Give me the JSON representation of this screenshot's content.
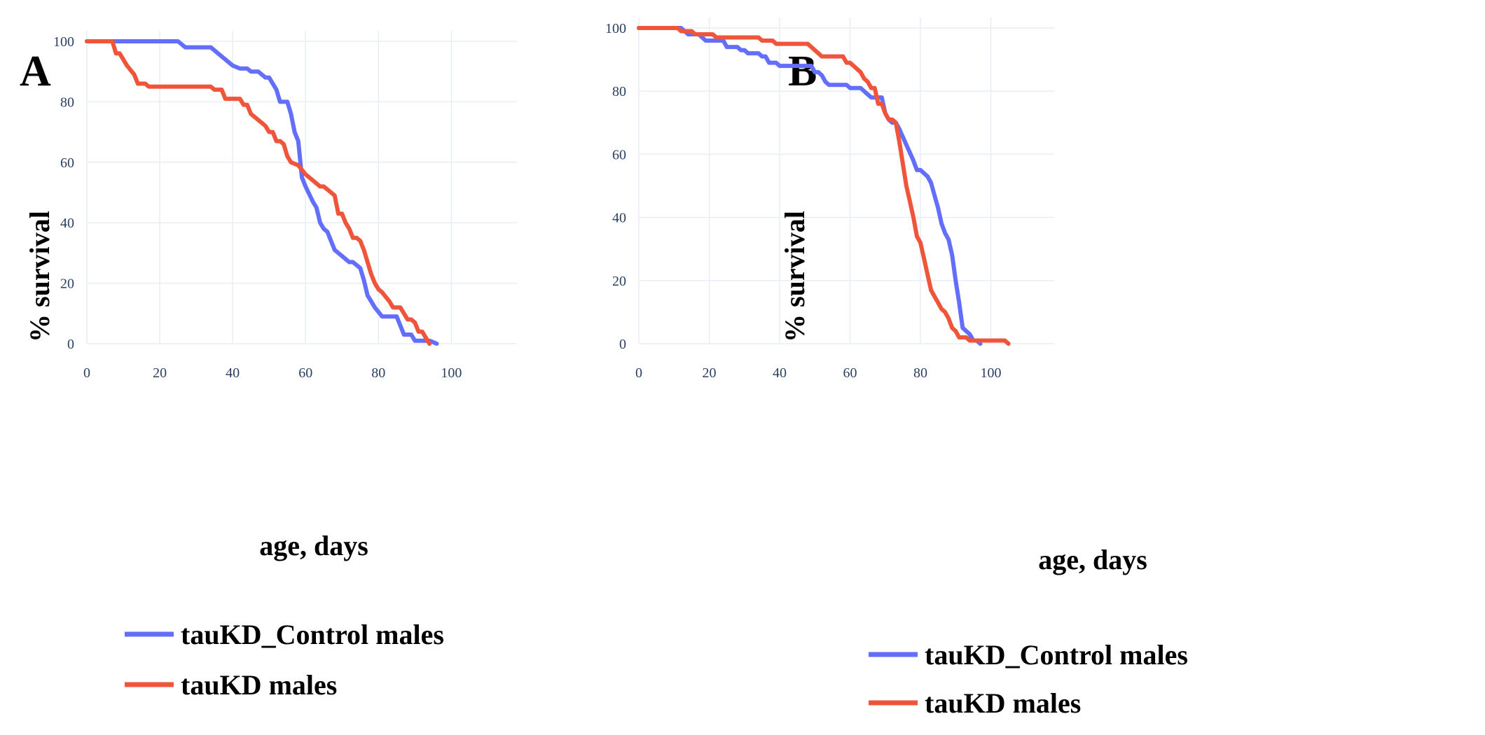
{
  "chart_data": [
    {
      "panel": "A",
      "type": "line",
      "xlabel": "age, days",
      "ylabel": "% survival",
      "xlim": [
        0,
        118
      ],
      "ylim": [
        0,
        100
      ],
      "x_ticks": [
        0,
        20,
        40,
        60,
        80,
        100
      ],
      "y_ticks": [
        0,
        20,
        40,
        60,
        80,
        100
      ],
      "grid": true,
      "legend_position": "bottom",
      "series": [
        {
          "name": "tauKD_Control males",
          "color": "#636efa",
          "points": [
            [
              0,
              100
            ],
            [
              25,
              100
            ],
            [
              27,
              98
            ],
            [
              34,
              98
            ],
            [
              36,
              96
            ],
            [
              38,
              94
            ],
            [
              40,
              92
            ],
            [
              42,
              91
            ],
            [
              44,
              91
            ],
            [
              45,
              90
            ],
            [
              47,
              90
            ],
            [
              48,
              89
            ],
            [
              49,
              88
            ],
            [
              50,
              88
            ],
            [
              52,
              84
            ],
            [
              53,
              80
            ],
            [
              55,
              80
            ],
            [
              56,
              76
            ],
            [
              57,
              70
            ],
            [
              58,
              67
            ],
            [
              59,
              55
            ],
            [
              60,
              52
            ],
            [
              62,
              47
            ],
            [
              63,
              45
            ],
            [
              64,
              40
            ],
            [
              65,
              38
            ],
            [
              66,
              37
            ],
            [
              68,
              31
            ],
            [
              70,
              29
            ],
            [
              72,
              27
            ],
            [
              73,
              27
            ],
            [
              75,
              25
            ],
            [
              76,
              21
            ],
            [
              77,
              16
            ],
            [
              79,
              12
            ],
            [
              81,
              9
            ],
            [
              85,
              9
            ],
            [
              87,
              3
            ],
            [
              89,
              3
            ],
            [
              90,
              1
            ],
            [
              94,
              1
            ],
            [
              96,
              0
            ]
          ]
        },
        {
          "name": "tauKD males",
          "color": "#ef553b",
          "points": [
            [
              0,
              100
            ],
            [
              7,
              100
            ],
            [
              8,
              96
            ],
            [
              9,
              96
            ],
            [
              11,
              92
            ],
            [
              13,
              89
            ],
            [
              14,
              86
            ],
            [
              16,
              86
            ],
            [
              17,
              85
            ],
            [
              34,
              85
            ],
            [
              35,
              84
            ],
            [
              37,
              84
            ],
            [
              38,
              81
            ],
            [
              42,
              81
            ],
            [
              43,
              79
            ],
            [
              44,
              79
            ],
            [
              45,
              76
            ],
            [
              48,
              73
            ],
            [
              49,
              72
            ],
            [
              50,
              70
            ],
            [
              51,
              70
            ],
            [
              52,
              67
            ],
            [
              53,
              67
            ],
            [
              54,
              66
            ],
            [
              55,
              62
            ],
            [
              56,
              60
            ],
            [
              58,
              59
            ],
            [
              60,
              56
            ],
            [
              62,
              54
            ],
            [
              64,
              52
            ],
            [
              65,
              52
            ],
            [
              66,
              51
            ],
            [
              67,
              50
            ],
            [
              68,
              49
            ],
            [
              69,
              43
            ],
            [
              70,
              43
            ],
            [
              71,
              40
            ],
            [
              72,
              38
            ],
            [
              73,
              35
            ],
            [
              74,
              35
            ],
            [
              75,
              34
            ],
            [
              76,
              31
            ],
            [
              77,
              27
            ],
            [
              78,
              23
            ],
            [
              79,
              20
            ],
            [
              80,
              18
            ],
            [
              81,
              17
            ],
            [
              83,
              14
            ],
            [
              84,
              12
            ],
            [
              86,
              12
            ],
            [
              87,
              10
            ],
            [
              88,
              8
            ],
            [
              89,
              8
            ],
            [
              90,
              7
            ],
            [
              91,
              4
            ],
            [
              92,
              4
            ],
            [
              93,
              2
            ],
            [
              94,
              0
            ]
          ]
        }
      ]
    },
    {
      "panel": "B",
      "type": "line",
      "xlabel": "age, days",
      "ylabel": "% survival",
      "xlim": [
        0,
        118
      ],
      "ylim": [
        0,
        100
      ],
      "x_ticks": [
        0,
        20,
        40,
        60,
        80,
        100
      ],
      "y_ticks": [
        0,
        20,
        40,
        60,
        80,
        100
      ],
      "grid": true,
      "legend_position": "bottom",
      "series": [
        {
          "name": "tauKD_Control males",
          "color": "#636efa",
          "points": [
            [
              0,
              100
            ],
            [
              12,
              100
            ],
            [
              13,
              99
            ],
            [
              14,
              98
            ],
            [
              17,
              98
            ],
            [
              18,
              97
            ],
            [
              19,
              96
            ],
            [
              24,
              96
            ],
            [
              25,
              94
            ],
            [
              28,
              94
            ],
            [
              29,
              93
            ],
            [
              30,
              93
            ],
            [
              31,
              92
            ],
            [
              34,
              92
            ],
            [
              35,
              91
            ],
            [
              36,
              91
            ],
            [
              37,
              89
            ],
            [
              39,
              89
            ],
            [
              40,
              88
            ],
            [
              49,
              88
            ],
            [
              50,
              86
            ],
            [
              51,
              86
            ],
            [
              52,
              85
            ],
            [
              53,
              83
            ],
            [
              54,
              82
            ],
            [
              59,
              82
            ],
            [
              60,
              81
            ],
            [
              63,
              81
            ],
            [
              64,
              80
            ],
            [
              65,
              79
            ],
            [
              66,
              78
            ],
            [
              69,
              78
            ],
            [
              70,
              73
            ],
            [
              71,
              71
            ],
            [
              72,
              70
            ],
            [
              73,
              70
            ],
            [
              74,
              68
            ],
            [
              76,
              63
            ],
            [
              78,
              58
            ],
            [
              79,
              55
            ],
            [
              80,
              55
            ],
            [
              82,
              53
            ],
            [
              83,
              51
            ],
            [
              84,
              47
            ],
            [
              85,
              43
            ],
            [
              86,
              38
            ],
            [
              87,
              35
            ],
            [
              88,
              33
            ],
            [
              89,
              28
            ],
            [
              90,
              20
            ],
            [
              91,
              13
            ],
            [
              92,
              5
            ],
            [
              94,
              3
            ],
            [
              95,
              1
            ],
            [
              96,
              1
            ],
            [
              97,
              0
            ]
          ]
        },
        {
          "name": "tauKD males",
          "color": "#ef553b",
          "points": [
            [
              0,
              100
            ],
            [
              11,
              100
            ],
            [
              12,
              99
            ],
            [
              15,
              99
            ],
            [
              16,
              98
            ],
            [
              21,
              98
            ],
            [
              22,
              97
            ],
            [
              34,
              97
            ],
            [
              35,
              96
            ],
            [
              38,
              96
            ],
            [
              39,
              95
            ],
            [
              48,
              95
            ],
            [
              49,
              94
            ],
            [
              51,
              92
            ],
            [
              52,
              91
            ],
            [
              58,
              91
            ],
            [
              59,
              89
            ],
            [
              60,
              89
            ],
            [
              62,
              87
            ],
            [
              63,
              86
            ],
            [
              64,
              84
            ],
            [
              65,
              83
            ],
            [
              66,
              81
            ],
            [
              67,
              81
            ],
            [
              68,
              76
            ],
            [
              69,
              76
            ],
            [
              70,
              73
            ],
            [
              71,
              71
            ],
            [
              72,
              71
            ],
            [
              73,
              70
            ],
            [
              74,
              64
            ],
            [
              75,
              57
            ],
            [
              76,
              50
            ],
            [
              77,
              45
            ],
            [
              78,
              40
            ],
            [
              79,
              34
            ],
            [
              80,
              32
            ],
            [
              81,
              27
            ],
            [
              82,
              22
            ],
            [
              83,
              17
            ],
            [
              84,
              15
            ],
            [
              85,
              13
            ],
            [
              86,
              11
            ],
            [
              87,
              10
            ],
            [
              88,
              8
            ],
            [
              89,
              5
            ],
            [
              90,
              4
            ],
            [
              91,
              2
            ],
            [
              93,
              2
            ],
            [
              94,
              1
            ],
            [
              104,
              1
            ],
            [
              105,
              0
            ]
          ]
        }
      ]
    }
  ]
}
